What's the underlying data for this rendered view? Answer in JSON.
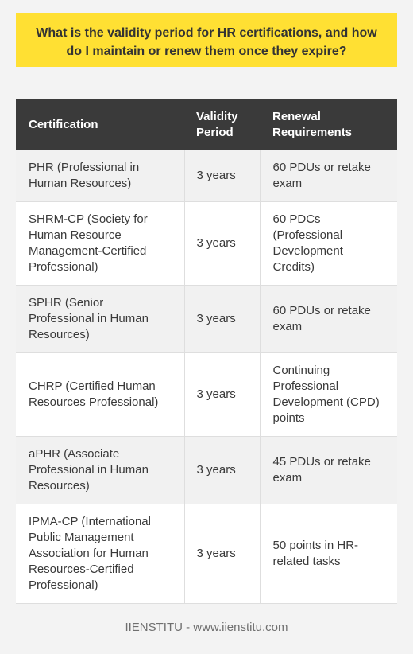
{
  "question": "What is the validity period for HR certifications, and how do I maintain or renew them once they expire?",
  "table": {
    "headers": {
      "certification": "Certification",
      "validity": "Validity Period",
      "renewal": "Renewal Requirements"
    },
    "rows": [
      {
        "certification": "PHR (Professional in Human Resources)",
        "validity": "3 years",
        "renewal": "60 PDUs or retake exam"
      },
      {
        "certification": "SHRM-CP (Society for Human Resource Management-Certified Professional)",
        "validity": "3 years",
        "renewal": "60 PDCs (Professional Development Credits)"
      },
      {
        "certification": "SPHR (Senior Professional in Human Resources)",
        "validity": "3 years",
        "renewal": "60 PDUs or retake exam"
      },
      {
        "certification": "CHRP (Certified Human Resources Professional)",
        "validity": "3 years",
        "renewal": "Continuing Professional Development (CPD) points"
      },
      {
        "certification": "aPHR (Associate Professional in Human Resources)",
        "validity": "3 years",
        "renewal": "45 PDUs or retake exam"
      },
      {
        "certification": "IPMA-CP (International Public Management Association for Human Resources-Certified Professional)",
        "validity": "3 years",
        "renewal": "50 points in HR-related tasks"
      }
    ]
  },
  "footer": "IIENSTITU - www.iienstitu.com"
}
